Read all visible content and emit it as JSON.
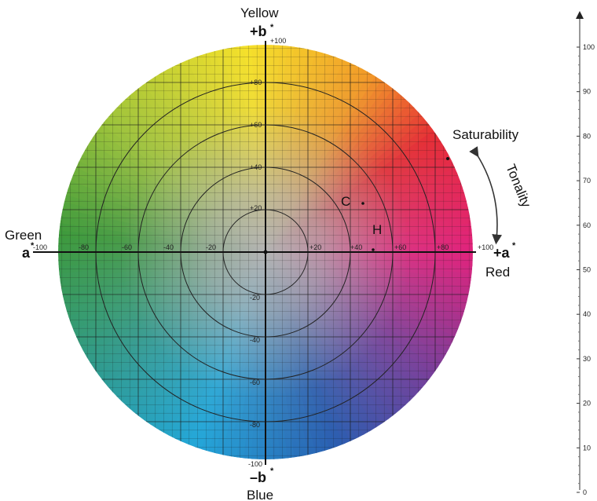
{
  "labels": {
    "yellow": "Yellow",
    "blue": "Blue",
    "green": "Green",
    "red": "Red",
    "saturability": "Saturability",
    "tonality": "Tonality",
    "c_point": "C",
    "h_point": "H"
  },
  "axes": {
    "plus_b": "+b",
    "minus_b": "–b",
    "plus_a": "+a",
    "minus_a": "a",
    "star": "*",
    "plus_b_value": "+100",
    "minus_b_value": "-100",
    "plus_a_value": "+100",
    "minus_a_value": "-100"
  },
  "ticks": {
    "top": [
      "+80",
      "+60",
      "+40",
      "+20"
    ],
    "bottom": [
      "-20",
      "-40",
      "-60",
      "-80"
    ],
    "left": [
      "-80",
      "-60",
      "-40",
      "-20"
    ],
    "right": [
      "+20",
      "+40",
      "+60",
      "+80"
    ]
  },
  "lightness_scale": {
    "values": [
      100,
      90,
      80,
      70,
      60,
      50,
      40,
      30,
      20,
      10,
      0
    ],
    "labels": [
      "100",
      "90",
      "80",
      "70",
      "60",
      "50",
      "40",
      "30",
      "20",
      "10",
      "0"
    ]
  },
  "colors": {
    "yellow": "#f6e12a",
    "orange": "#f29a28",
    "red": "#e62e35",
    "magenta": "#e0237d",
    "purple": "#7b3e9a",
    "blue": "#2a5db0",
    "cyan": "#23a7d9",
    "teal": "#2f9b8f",
    "green": "#3e9a3c",
    "yellowgreen": "#9ec43a",
    "center": "#b3b3b3",
    "grid": "#1a1a1a"
  }
}
